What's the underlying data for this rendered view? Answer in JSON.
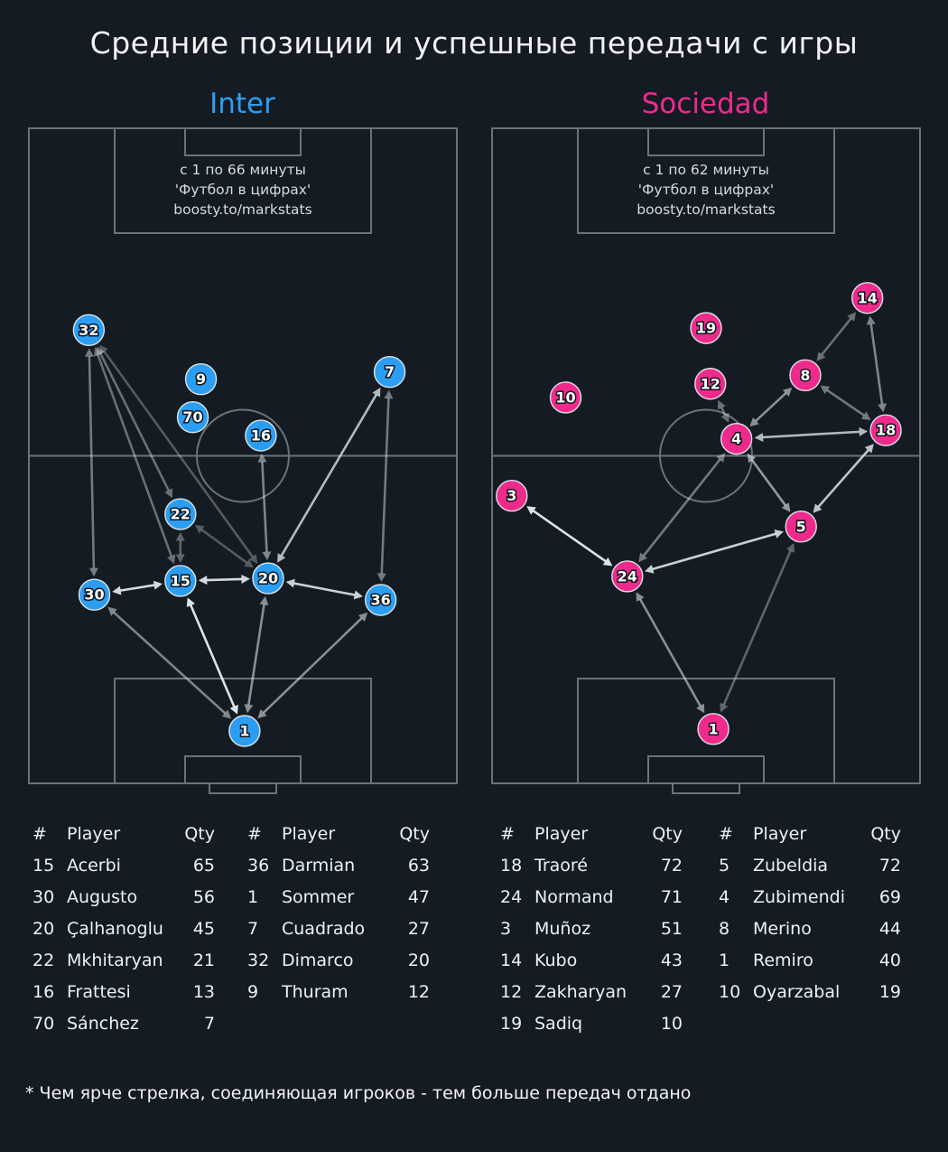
{
  "title": "Средние позиции и успешные передачи с игры",
  "footnote": "* Чем ярче стрелка, соединяющая игроков - тем больше передач отдано",
  "chart_data": [
    {
      "type": "scatter",
      "team": "Inter",
      "color": "#2b9ef3",
      "info": [
        "с 1 по 66 минуты",
        "'Футбол в цифрах'",
        "boosty.to/markstats"
      ],
      "players": [
        {
          "num": 32,
          "x": 14.0,
          "y": 30.8
        },
        {
          "num": 9,
          "x": 40.2,
          "y": 38.3
        },
        {
          "num": 70,
          "x": 38.3,
          "y": 44.1
        },
        {
          "num": 16,
          "x": 54.2,
          "y": 46.9
        },
        {
          "num": 7,
          "x": 84.3,
          "y": 37.2
        },
        {
          "num": 22,
          "x": 35.4,
          "y": 58.9
        },
        {
          "num": 30,
          "x": 15.3,
          "y": 71.2
        },
        {
          "num": 15,
          "x": 35.4,
          "y": 69.1
        },
        {
          "num": 20,
          "x": 55.9,
          "y": 68.7
        },
        {
          "num": 36,
          "x": 82.2,
          "y": 72.0
        },
        {
          "num": 1,
          "x": 50.4,
          "y": 92.0
        }
      ],
      "passes": [
        {
          "a": 15,
          "b": 1,
          "w": 0.95
        },
        {
          "a": 15,
          "b": 30,
          "w": 0.9
        },
        {
          "a": 15,
          "b": 20,
          "w": 0.9
        },
        {
          "a": 20,
          "b": 36,
          "w": 0.85
        },
        {
          "a": 20,
          "b": 7,
          "w": 0.75
        },
        {
          "a": 20,
          "b": 1,
          "w": 0.55
        },
        {
          "a": 20,
          "b": 16,
          "w": 0.5
        },
        {
          "a": 20,
          "b": 32,
          "w": 0.3
        },
        {
          "a": 20,
          "b": 22,
          "w": 0.3
        },
        {
          "a": 30,
          "b": 1,
          "w": 0.5
        },
        {
          "a": 30,
          "b": 32,
          "w": 0.45
        },
        {
          "a": 36,
          "b": 1,
          "w": 0.55
        },
        {
          "a": 36,
          "b": 7,
          "w": 0.45
        },
        {
          "a": 32,
          "b": 15,
          "w": 0.4
        },
        {
          "a": 32,
          "b": 22,
          "w": 0.4
        },
        {
          "a": 22,
          "b": 15,
          "w": 0.35
        }
      ],
      "qty_tables": [
        {
          "headers": [
            "#",
            "Player",
            "Qty"
          ],
          "rows": [
            [
              15,
              "Acerbi",
              65
            ],
            [
              30,
              "Augusto",
              56
            ],
            [
              20,
              "Çalhanoglu",
              45
            ],
            [
              22,
              "Mkhitaryan",
              21
            ],
            [
              16,
              "Frattesi",
              13
            ],
            [
              70,
              "Sánchez",
              7
            ]
          ]
        },
        {
          "headers": [
            "#",
            "Player",
            "Qty"
          ],
          "rows": [
            [
              36,
              "Darmian",
              63
            ],
            [
              1,
              "Sommer",
              47
            ],
            [
              7,
              "Cuadrado",
              27
            ],
            [
              32,
              "Dimarco",
              20
            ],
            [
              9,
              "Thuram",
              12
            ]
          ]
        }
      ]
    },
    {
      "type": "scatter",
      "team": "Sociedad",
      "color": "#ee2b8c",
      "info": [
        "с 1 по 62 минуты",
        "'Футбол в цифрах'",
        "boosty.to/markstats"
      ],
      "players": [
        {
          "num": 14,
          "x": 87.7,
          "y": 25.9
        },
        {
          "num": 19,
          "x": 50.0,
          "y": 30.5
        },
        {
          "num": 12,
          "x": 51.0,
          "y": 39.0
        },
        {
          "num": 8,
          "x": 73.2,
          "y": 37.7
        },
        {
          "num": 10,
          "x": 17.2,
          "y": 41.1
        },
        {
          "num": 4,
          "x": 57.1,
          "y": 47.4
        },
        {
          "num": 18,
          "x": 92.0,
          "y": 46.1
        },
        {
          "num": 3,
          "x": 4.6,
          "y": 56.1
        },
        {
          "num": 5,
          "x": 72.2,
          "y": 60.8
        },
        {
          "num": 24,
          "x": 31.6,
          "y": 68.4
        },
        {
          "num": 1,
          "x": 51.7,
          "y": 91.7
        }
      ],
      "passes": [
        {
          "a": 3,
          "b": 24,
          "w": 0.95
        },
        {
          "a": 24,
          "b": 5,
          "w": 0.85
        },
        {
          "a": 5,
          "b": 18,
          "w": 0.8
        },
        {
          "a": 4,
          "b": 18,
          "w": 0.75
        },
        {
          "a": 4,
          "b": 5,
          "w": 0.6
        },
        {
          "a": 24,
          "b": 1,
          "w": 0.55
        },
        {
          "a": 24,
          "b": 4,
          "w": 0.45
        },
        {
          "a": 8,
          "b": 4,
          "w": 0.55
        },
        {
          "a": 8,
          "b": 18,
          "w": 0.45
        },
        {
          "a": 14,
          "b": 18,
          "w": 0.5
        },
        {
          "a": 14,
          "b": 8,
          "w": 0.4
        },
        {
          "a": 12,
          "b": 4,
          "w": 0.4
        },
        {
          "a": 1,
          "b": 5,
          "w": 0.35
        }
      ],
      "qty_tables": [
        {
          "headers": [
            "#",
            "Player",
            "Qty"
          ],
          "rows": [
            [
              18,
              "Traoré",
              72
            ],
            [
              24,
              "Normand",
              71
            ],
            [
              3,
              "Muñoz",
              51
            ],
            [
              14,
              "Kubo",
              43
            ],
            [
              12,
              "Zakharyan",
              27
            ],
            [
              19,
              "Sadiq",
              10
            ]
          ]
        },
        {
          "headers": [
            "#",
            "Player",
            "Qty"
          ],
          "rows": [
            [
              5,
              "Zubeldia",
              72
            ],
            [
              4,
              "Zubimendi",
              69
            ],
            [
              8,
              "Merino",
              44
            ],
            [
              1,
              "Remiro",
              40
            ],
            [
              10,
              "Oyarzabal",
              19
            ]
          ]
        }
      ]
    }
  ]
}
